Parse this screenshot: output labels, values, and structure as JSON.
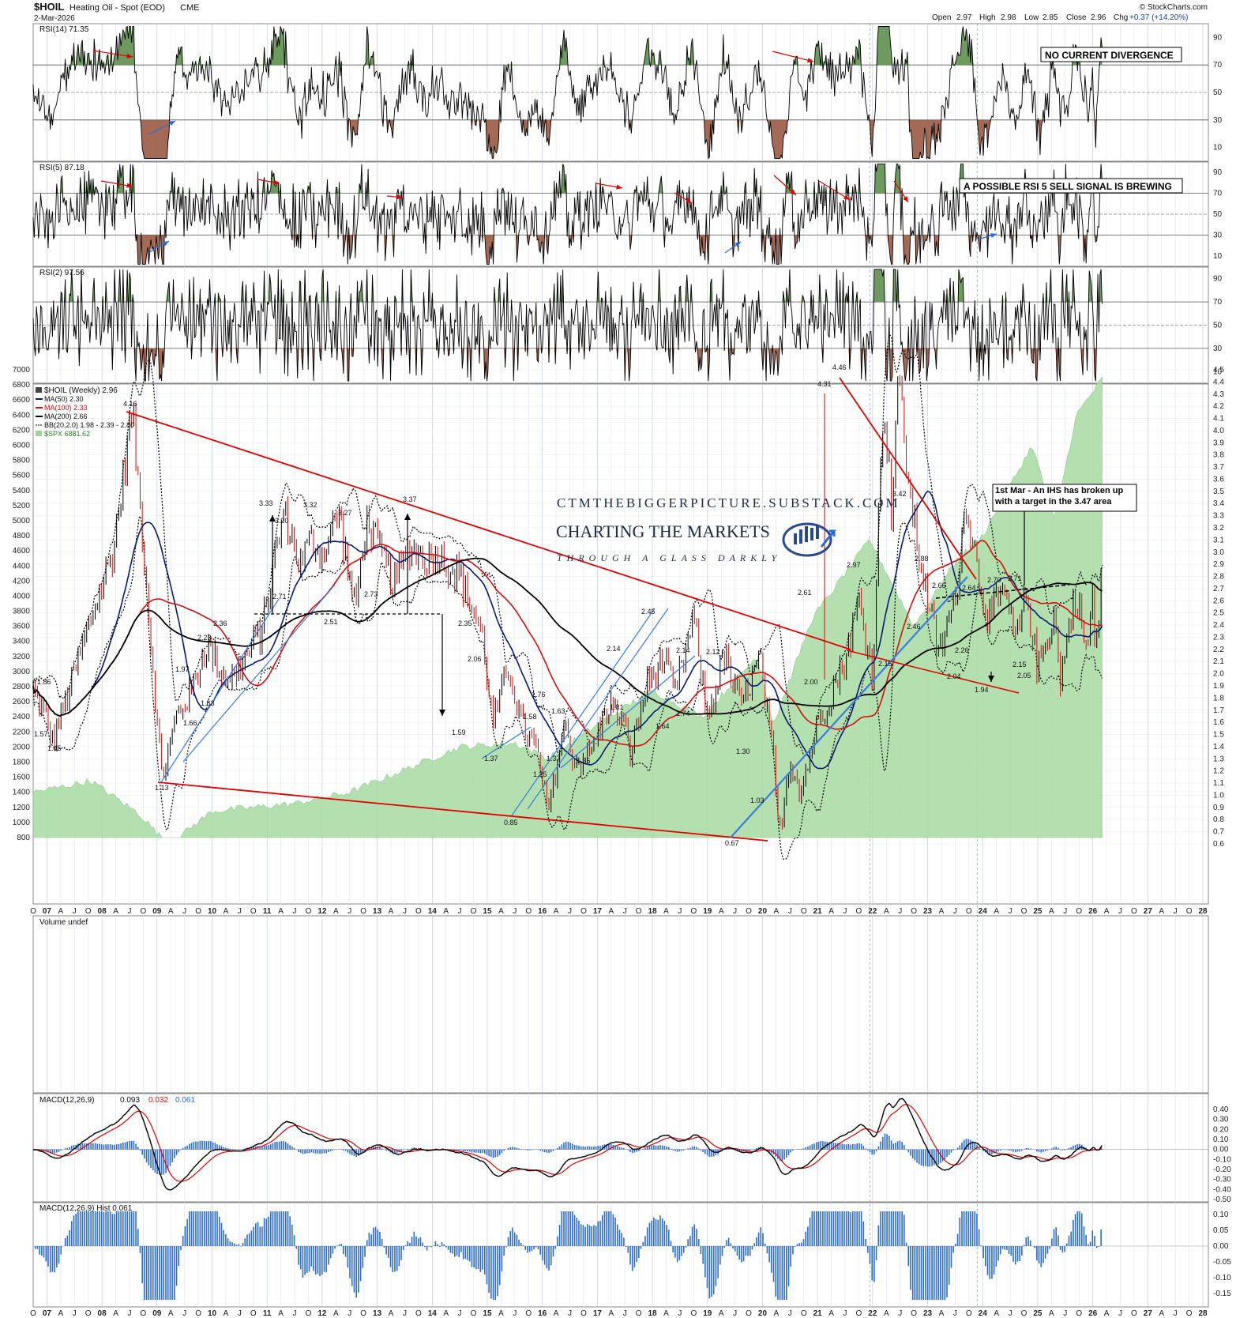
{
  "header": {
    "symbol": "$HOIL",
    "description": "Heating Oil - Spot (EOD)",
    "exchange": "CME",
    "date": "2-Mar-2026",
    "open_label": "Open",
    "open": "2.97",
    "high_label": "High",
    "high": "2.98",
    "low_label": "Low",
    "low": "2.85",
    "close_label": "Close",
    "close": "2.96",
    "chg_label": "Chg",
    "chg": "+0.37 (+14.20%)",
    "source": "© StockCharts.com"
  },
  "panels": {
    "rsi14": {
      "label": "RSI(14) 71.35",
      "ticks": [
        "90",
        "70",
        "50",
        "30",
        "10"
      ],
      "note": "NO CURRENT DIVERGENCE"
    },
    "rsi5": {
      "label": "RSI(5) 87.18",
      "ticks": [
        "90",
        "70",
        "50",
        "30",
        "10"
      ],
      "note": "A POSSIBLE RSI 5 SELL SIGNAL IS BREWING"
    },
    "rsi2": {
      "label": "RSI(2) 97.56",
      "ticks": [
        "90",
        "70",
        "50",
        "30",
        "10"
      ]
    },
    "price": {
      "legend": [
        "$HOIL (Weekly) 2.96",
        "MA(50) 2.30",
        "MA(100) 2.33",
        "MA(200) 2.66",
        "BB(20,2.0) 1.98 - 2.39 - 2.80",
        "$SPX 6881.62"
      ],
      "left_ticks": [
        "7000",
        "6800",
        "6600",
        "6400",
        "6200",
        "6000",
        "5800",
        "5600",
        "5400",
        "5200",
        "5000",
        "4800",
        "4600",
        "4400",
        "4200",
        "4000",
        "3800",
        "3600",
        "3400",
        "3200",
        "3000",
        "2800",
        "2600",
        "2400",
        "2200",
        "2000",
        "1800",
        "1600",
        "1400",
        "1200",
        "1000",
        "800"
      ],
      "right_ticks": [
        "4.5",
        "4.4",
        "4.3",
        "4.2",
        "4.1",
        "4.0",
        "3.9",
        "3.8",
        "3.7",
        "3.6",
        "3.5",
        "3.4",
        "3.3",
        "3.2",
        "3.1",
        "3.0",
        "2.9",
        "2.8",
        "2.7",
        "2.6",
        "2.5",
        "2.4",
        "2.3",
        "2.2",
        "2.1",
        "2.0",
        "1.9",
        "1.8",
        "1.7",
        "1.6",
        "1.5",
        "1.4",
        "1.3",
        "1.2",
        "1.1",
        "1.0",
        "0.9",
        "0.8",
        "0.7",
        "0.6"
      ],
      "note": "1st Mar - An IHS has broken up with a target in the 3.47 area",
      "watermark": {
        "line1": "CTMTHEBIGGERPICTURE.SUBSTACK.COM",
        "line2": "CHARTING THE MARKETS",
        "line3": "THROUGH A GLASS DARKLY"
      }
    },
    "volume": {
      "label": "Volume undef"
    },
    "macd": {
      "label": "MACD(12,26,9)",
      "v1": "0.093",
      "v2": "0.032",
      "v3": "0.061",
      "ticks": [
        "0.40",
        "0.30",
        "0.20",
        "0.10",
        "0.00",
        "-0.10",
        "-0.20",
        "-0.30",
        "-0.40",
        "-0.50"
      ]
    },
    "hist": {
      "label": "MACD(12,26,9) Hist 0.061",
      "ticks": [
        "0.10",
        "0.05",
        "0.00",
        "-0.05",
        "-0.10",
        "-0.15"
      ]
    }
  },
  "x_axis": [
    "O",
    "07",
    "A",
    "J",
    "O",
    "08",
    "A",
    "J",
    "O",
    "09",
    "A",
    "J",
    "O",
    "10",
    "A",
    "J",
    "O",
    "11",
    "A",
    "J",
    "O",
    "12",
    "A",
    "J",
    "O",
    "13",
    "A",
    "J",
    "O",
    "14",
    "A",
    "J",
    "O",
    "15",
    "A",
    "J",
    "O",
    "16",
    "A",
    "J",
    "O",
    "17",
    "A",
    "J",
    "O",
    "18",
    "A",
    "J",
    "O",
    "19",
    "A",
    "J",
    "O",
    "20",
    "A",
    "J",
    "O",
    "21",
    "A",
    "J",
    "O",
    "22",
    "A",
    "J",
    "O",
    "23",
    "A",
    "J",
    "O",
    "24",
    "A",
    "J",
    "O",
    "25",
    "A",
    "J",
    "O",
    "26",
    "A",
    "J",
    "O",
    "27",
    "A",
    "J",
    "O",
    "28"
  ],
  "chart_data": {
    "type": "line",
    "title": "$HOIL Heating Oil - Spot (EOD)",
    "x": [
      "2007",
      "2008",
      "2008.5",
      "2009",
      "2010",
      "2011",
      "2012",
      "2013",
      "2014",
      "2015",
      "2016",
      "2017",
      "2018",
      "2019",
      "2020",
      "2020.3",
      "2021",
      "2022",
      "2022.5",
      "2023",
      "2023.5",
      "2024",
      "2025",
      "2025.4",
      "2026",
      "2026.2"
    ],
    "series": [
      {
        "name": "$HOIL (Weekly)",
        "values": [
          1.57,
          2.5,
          4.16,
          1.13,
          2.23,
          2.71,
          3.32,
          3.27,
          3.37,
          1.59,
          0.85,
          1.76,
          2.45,
          1.64,
          2.12,
          0.67,
          1.3,
          2.61,
          4.46,
          2.97,
          3.42,
          2.88,
          2.04,
          1.94,
          2.15,
          2.96
        ]
      }
    ],
    "price_labels": [
      "1.86",
      "1.57",
      "1.45",
      "4.16",
      "1.13",
      "1.66",
      "1.83",
      "1.97",
      "2.23",
      "2.36",
      "3.33",
      "3.20",
      "2.71",
      "3.32",
      "2.51",
      "3.27",
      "2.73",
      "3.37",
      "2.35",
      "2.06",
      "1.59",
      "1.37",
      "0.85",
      "1.58",
      "1.25",
      "1.37",
      "1.76",
      "1.63",
      "1.35",
      "2.14",
      "1.81",
      "2.45",
      "2.14",
      "1.64",
      "1.74",
      "2.12",
      "0.67",
      "1.30",
      "1.03",
      "2.61",
      "2.00",
      "4.31",
      "4.46",
      "2.97",
      "3.42",
      "2.15",
      "2.88",
      "2.46",
      "2.66",
      "2.64",
      "2.26",
      "2.04",
      "1.94",
      "2.70",
      "2.71",
      "2.15",
      "2.05"
    ],
    "ylim_left": [
      700,
      7000
    ],
    "ylim_right": [
      0.6,
      4.5
    ],
    "grid": true
  }
}
